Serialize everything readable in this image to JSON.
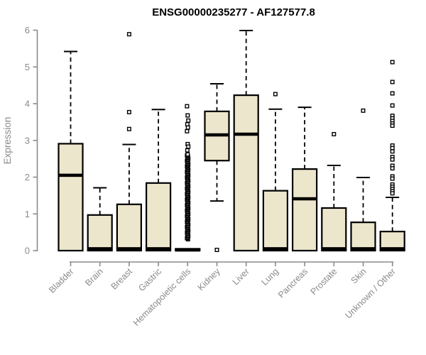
{
  "chart_data": {
    "type": "boxplot",
    "title": "ENSG00000235277 - AF127577.8",
    "ylabel": "Expression",
    "xlabel": "",
    "ylim": [
      0,
      6
    ],
    "yticks": [
      0,
      1,
      2,
      3,
      4,
      5,
      6
    ],
    "grid": false,
    "legend": "none",
    "categories": [
      "Bladder",
      "Brain",
      "Breast",
      "Gastric",
      "Hematopoietic cells",
      "Kidney",
      "Liver",
      "Lung",
      "Pancreas",
      "Prostate",
      "Skin",
      "Unknown / Other"
    ],
    "series": [
      {
        "category": "Bladder",
        "q1": 0,
        "median": 2.05,
        "q3": 2.91,
        "whisker_low": 0,
        "whisker_high": 5.42,
        "outliers": []
      },
      {
        "category": "Brain",
        "q1": 0,
        "median": 0.05,
        "q3": 0.97,
        "whisker_low": 0,
        "whisker_high": 1.71,
        "outliers": []
      },
      {
        "category": "Breast",
        "q1": 0,
        "median": 0.05,
        "q3": 1.26,
        "whisker_low": 0,
        "whisker_high": 2.89,
        "outliers": [
          3.31,
          3.77,
          5.89
        ]
      },
      {
        "category": "Gastric",
        "q1": 0,
        "median": 0.05,
        "q3": 1.84,
        "whisker_low": 0,
        "whisker_high": 3.84,
        "outliers": []
      },
      {
        "category": "Hematopoietic cells",
        "q1": 0,
        "median": 0.02,
        "q3": 0.05,
        "whisker_low": 0,
        "whisker_high": 0.05,
        "outliers": [
          3.93,
          3.68,
          3.54,
          3.44,
          3.35,
          3.25,
          2.9,
          2.83,
          2.73
        ],
        "outliers_dense": {
          "from": 0.31,
          "to": 2.63,
          "step": 0.03
        }
      },
      {
        "category": "Kidney",
        "q1": 2.45,
        "median": 3.15,
        "q3": 3.79,
        "whisker_low": 1.35,
        "whisker_high": 4.54,
        "outliers": [
          0.02
        ]
      },
      {
        "category": "Liver",
        "q1": 0,
        "median": 3.17,
        "q3": 4.23,
        "whisker_low": 0,
        "whisker_high": 5.99,
        "outliers": []
      },
      {
        "category": "Lung",
        "q1": 0,
        "median": 0.05,
        "q3": 1.63,
        "whisker_low": 0,
        "whisker_high": 3.85,
        "outliers": [
          4.26
        ]
      },
      {
        "category": "Pancreas",
        "q1": 0,
        "median": 1.41,
        "q3": 2.22,
        "whisker_low": 0,
        "whisker_high": 3.9,
        "outliers": []
      },
      {
        "category": "Prostate",
        "q1": 0,
        "median": 0.05,
        "q3": 1.16,
        "whisker_low": 0,
        "whisker_high": 2.32,
        "outliers": [
          3.17
        ]
      },
      {
        "category": "Skin",
        "q1": 0,
        "median": 0.05,
        "q3": 0.77,
        "whisker_low": 0,
        "whisker_high": 1.99,
        "outliers": [
          3.81
        ]
      },
      {
        "category": "Unknown / Other",
        "q1": 0,
        "median": 0.05,
        "q3": 0.52,
        "whisker_low": 0,
        "whisker_high": 1.45,
        "outliers": [
          5.13,
          4.59,
          4.28,
          3.95,
          3.67,
          3.6,
          3.53,
          3.46,
          3.4,
          2.86,
          2.79,
          2.7,
          2.55,
          2.48,
          2.31,
          2.24,
          2.02,
          1.96,
          1.8,
          1.74,
          1.68,
          1.62,
          1.56
        ]
      }
    ],
    "colors": {
      "box_fill": "#ECE6CC",
      "box_border": "#000000",
      "median": "#000000",
      "whisker": "#000000",
      "outlier_stroke": "#000000",
      "outlier_fill": "#ffffff",
      "axis": "#8a8a8a",
      "tick_label": "#8a8a8a",
      "title": "#000000"
    }
  }
}
